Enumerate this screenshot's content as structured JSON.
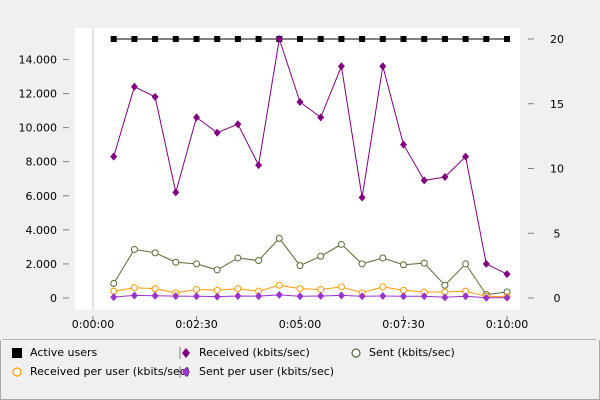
{
  "chart_data": {
    "type": "line",
    "x": [
      "0:00:30",
      "0:01:00",
      "0:01:30",
      "0:02:00",
      "0:02:30",
      "0:03:00",
      "0:03:30",
      "0:04:00",
      "0:04:30",
      "0:05:00",
      "0:05:30",
      "0:06:00",
      "0:06:30",
      "0:07:00",
      "0:07:30",
      "0:08:00",
      "0:08:30",
      "0:09:00",
      "0:09:30",
      "0:10:00"
    ],
    "x_ticks": [
      "0:00:00",
      "0:02:30",
      "0:05:00",
      "0:07:30",
      "0:10:00"
    ],
    "x_range_seconds": [
      0,
      600
    ],
    "y_left_ticks": [
      "0",
      "2.000",
      "4.000",
      "6.000",
      "8.000",
      "10.000",
      "12.000",
      "14.000"
    ],
    "y_left_range": [
      0,
      15200
    ],
    "y_right_ticks": [
      "0",
      "5",
      "10",
      "15",
      "20"
    ],
    "y_right_range": [
      0,
      20
    ],
    "grid": false,
    "legend_position": "bottom",
    "series": [
      {
        "name": "Active users",
        "axis": "right",
        "color": "#000000",
        "marker": "square",
        "values": [
          20,
          20,
          20,
          20,
          20,
          20,
          20,
          20,
          20,
          20,
          20,
          20,
          20,
          20,
          20,
          20,
          20,
          20,
          20,
          20
        ]
      },
      {
        "name": "Received (kbits/sec)",
        "axis": "left",
        "color": "#800080",
        "marker": "diamond",
        "values": [
          8300,
          12400,
          11800,
          6200,
          10600,
          9700,
          10200,
          7800,
          15200,
          11500,
          10600,
          13600,
          5900,
          13600,
          9000,
          6900,
          7100,
          8300,
          2000,
          1400
        ]
      },
      {
        "name": "Sent (kbits/sec)",
        "axis": "left",
        "color": "#556b2f",
        "marker": "circle-open",
        "values": [
          850,
          2850,
          2650,
          2100,
          2000,
          1650,
          2350,
          2200,
          3500,
          1900,
          2450,
          3150,
          2000,
          2350,
          1950,
          2050,
          750,
          2000,
          200,
          350
        ]
      },
      {
        "name": "Received per user (kbits/sec)",
        "axis": "left",
        "color": "#ff9900",
        "marker": "circle-open",
        "values": [
          400,
          600,
          550,
          300,
          500,
          450,
          550,
          400,
          750,
          550,
          500,
          650,
          300,
          650,
          450,
          350,
          350,
          400,
          100,
          70
        ]
      },
      {
        "name": "Sent per user (kbits/sec)",
        "axis": "left",
        "color": "#9933cc",
        "marker": "diamond",
        "values": [
          50,
          150,
          130,
          110,
          100,
          80,
          120,
          110,
          180,
          100,
          120,
          150,
          100,
          120,
          100,
          100,
          40,
          100,
          10,
          20
        ]
      }
    ]
  }
}
